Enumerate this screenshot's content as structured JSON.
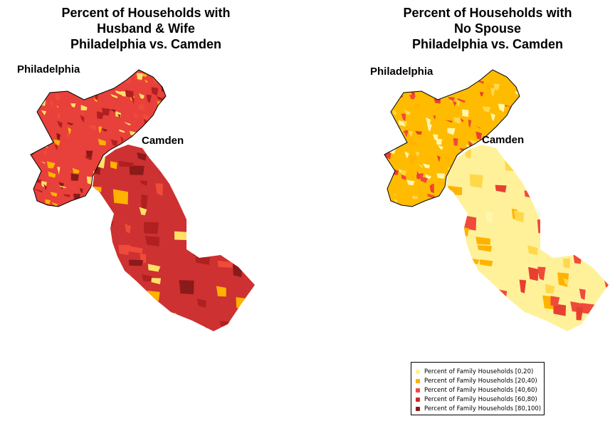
{
  "maps": [
    {
      "title": "Percent of Households with\nHusband & Wife\nPhiladelphia vs. Camden",
      "labels": {
        "philadelphia": "Philadelphia",
        "camden": "Camden"
      },
      "base_colors": {
        "philadelphia": "#E8403A",
        "camden": "#CD3131"
      },
      "accent_colors": [
        "#FFB300",
        "#FFE066",
        "#B02020",
        "#8B1A1A",
        "#F04A3A"
      ]
    },
    {
      "title": "Percent of Households with\nNo Spouse\nPhiladelphia vs. Camden",
      "labels": {
        "philadelphia": "Philadelphia",
        "camden": "Camden"
      },
      "base_colors": {
        "philadelphia": "#FFBB00",
        "camden": "#FFF19A"
      },
      "accent_colors": [
        "#FFD84A",
        "#F04A3A",
        "#FFB300",
        "#FFF6B0",
        "#E84030"
      ]
    }
  ],
  "legend": {
    "items": [
      {
        "label": "Percent of Family Households [0,20)",
        "color": "#FFF19A"
      },
      {
        "label": "Percent of Family Households [20,40)",
        "color": "#FFB300"
      },
      {
        "label": "Percent of Family Households [40,60)",
        "color": "#F04A3A"
      },
      {
        "label": "Percent of Family Households [60,80)",
        "color": "#CD2A2A"
      },
      {
        "label": "Percent of Family Households [80,100)",
        "color": "#8B1A1A"
      }
    ]
  }
}
